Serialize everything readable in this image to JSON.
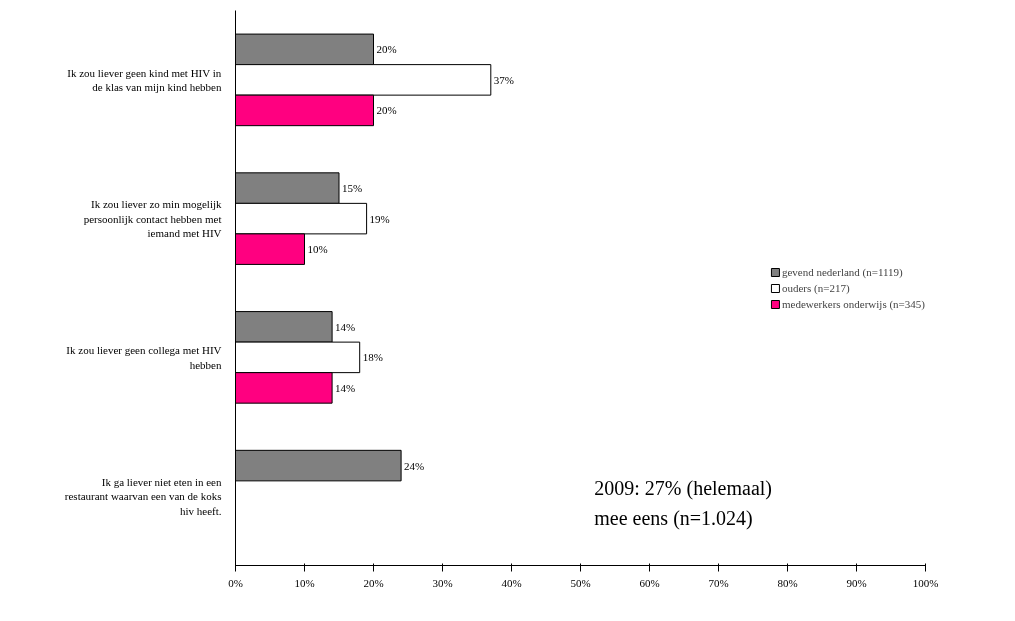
{
  "chart_data": {
    "type": "bar",
    "orientation": "horizontal",
    "categories": [
      "Ik zou liever geen kind met HIV in\nde klas van mijn kind hebben",
      "Ik zou liever zo min mogelijk\npersoonlijk contact hebben met\niemand met HIV",
      "Ik zou liever geen collega met HIV\nhebben",
      "Ik ga liever niet eten in een\nrestaurant waarvan een van de koks\nhiv heeft."
    ],
    "series": [
      {
        "name": "gevend nederland (n=1119)",
        "color": "#808080",
        "values": [
          20,
          15,
          14,
          24
        ],
        "value_labels": [
          "20%",
          "15%",
          "14%",
          "24%"
        ]
      },
      {
        "name": "ouders (n=217)",
        "color": "#ffffff",
        "values": [
          37,
          19,
          18,
          null
        ],
        "value_labels": [
          "37%",
          "19%",
          "18%",
          null
        ]
      },
      {
        "name": "medewerkers onderwijs (n=345)",
        "color": "#ff0080",
        "values": [
          20,
          10,
          14,
          null
        ],
        "value_labels": [
          "20%",
          "10%",
          "14%",
          null
        ]
      }
    ],
    "xlim": [
      0,
      100
    ],
    "xticks": [
      {
        "value": 0,
        "label": "0%"
      },
      {
        "value": 10,
        "label": "10%"
      },
      {
        "value": 20,
        "label": "20%"
      },
      {
        "value": 30,
        "label": "30%"
      },
      {
        "value": 40,
        "label": "40%"
      },
      {
        "value": 50,
        "label": "50%"
      },
      {
        "value": 60,
        "label": "60%"
      },
      {
        "value": 70,
        "label": "70%"
      },
      {
        "value": 80,
        "label": "80%"
      },
      {
        "value": 90,
        "label": "90%"
      },
      {
        "value": 100,
        "label": "100%"
      }
    ],
    "grid": false,
    "legend": "right",
    "annotations": [
      "2009: 27% (helemaal)\nmee eens (n=1.024)"
    ]
  }
}
